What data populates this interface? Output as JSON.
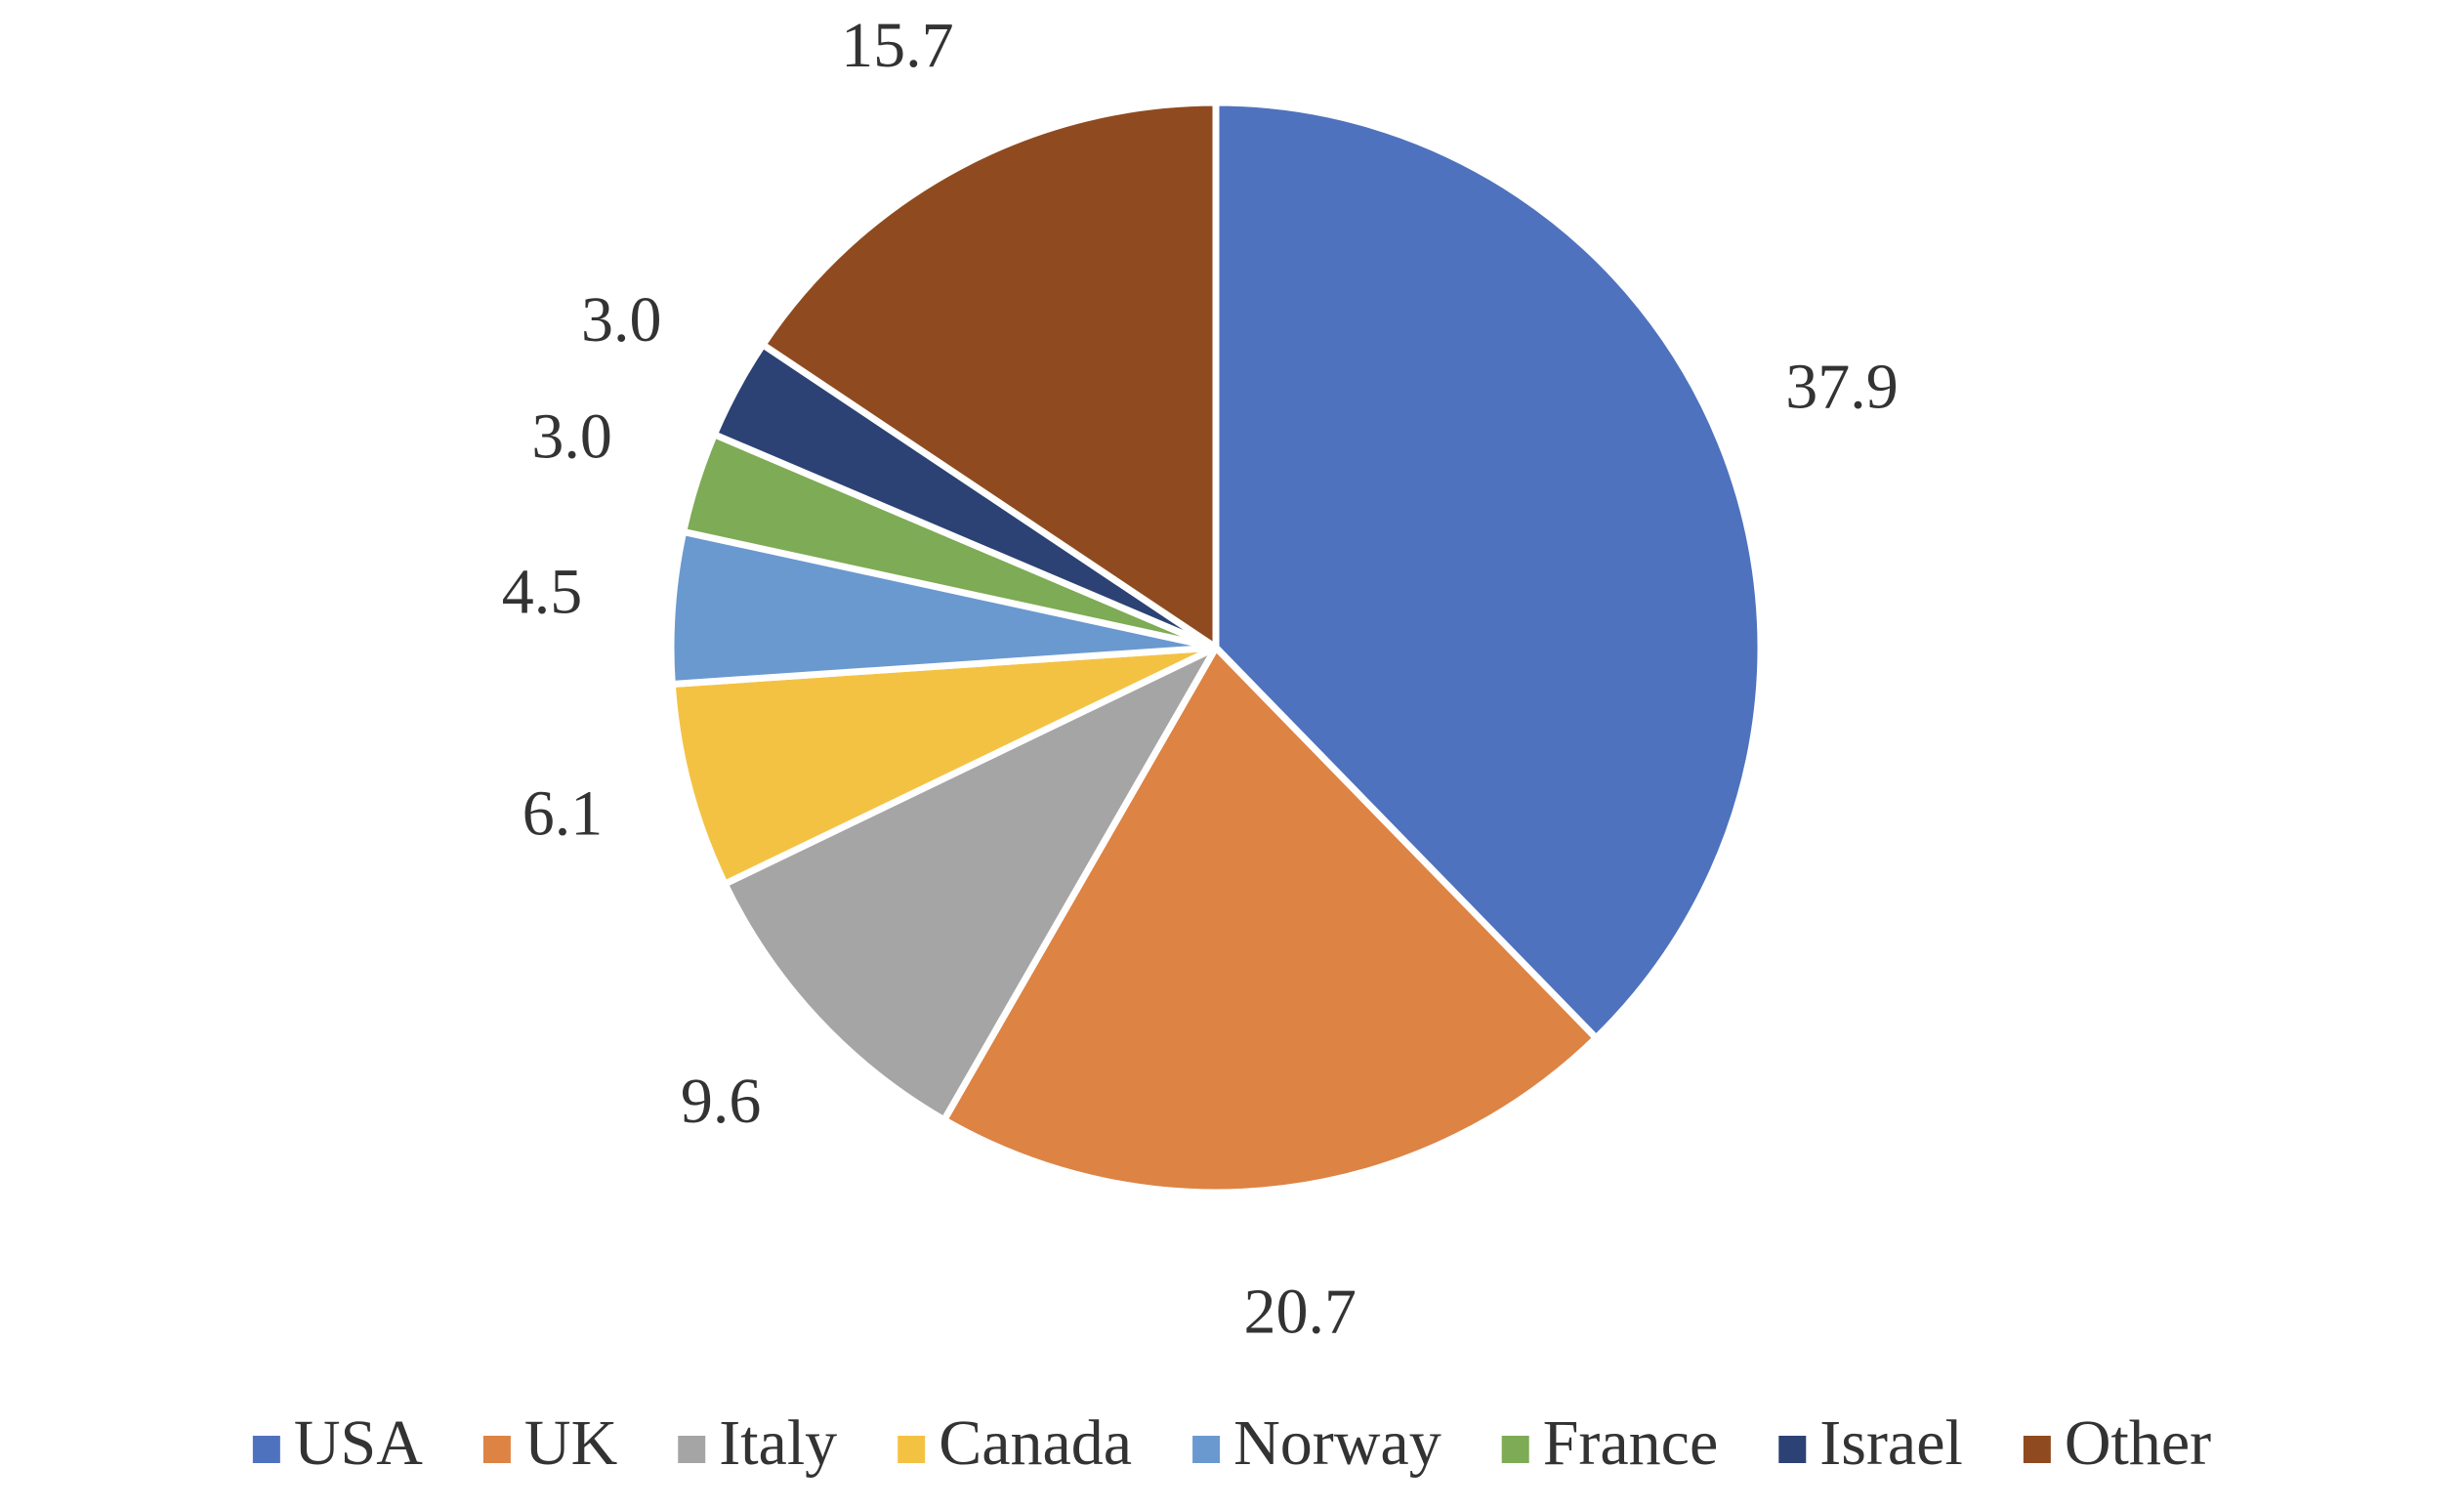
{
  "chart_data": {
    "type": "pie",
    "categories": [
      "USA",
      "UK",
      "Italy",
      "Canada",
      "Norway",
      "France",
      "Israel",
      "Other"
    ],
    "values": [
      37.9,
      20.7,
      9.6,
      6.1,
      4.5,
      3.0,
      3.0,
      15.7
    ],
    "value_labels": [
      "37.9",
      "20.7",
      "9.6",
      "6.1",
      "4.5",
      "3.0",
      "3.0",
      "15.7"
    ],
    "colors": [
      "#4f72be",
      "#dd8344",
      "#a5a5a5",
      "#f4c243",
      "#6a99d0",
      "#7eab55",
      "#2c4274",
      "#8f4b1f"
    ],
    "legend": "bottom"
  }
}
